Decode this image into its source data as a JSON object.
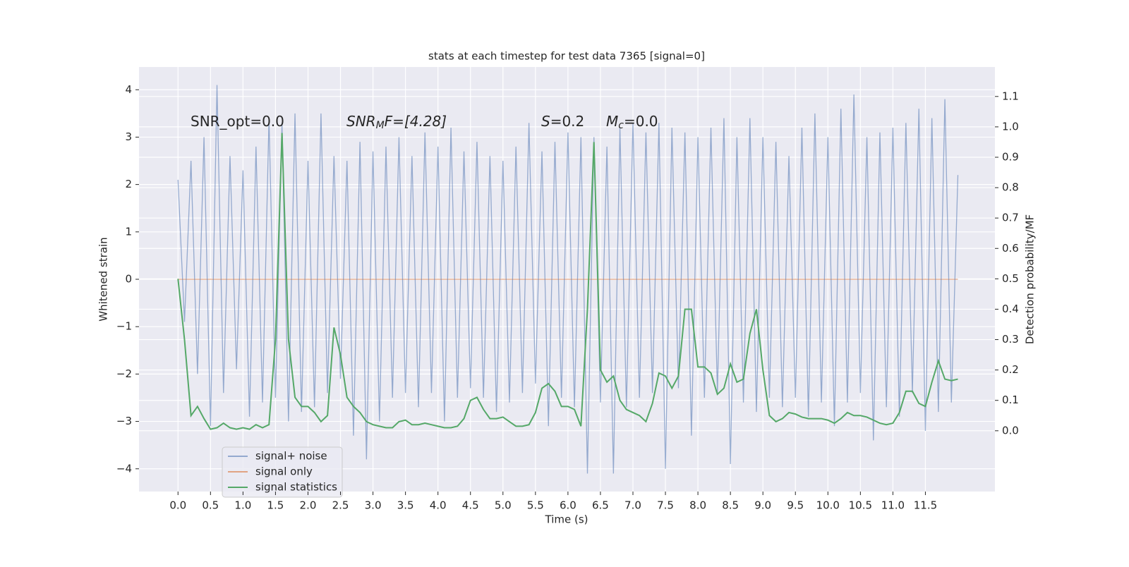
{
  "chart_data": {
    "type": "line",
    "title": "stats at each timestep for test data 7365 [signal=0]",
    "xlabel": "Time (s)",
    "ylabel": "Whitened strain",
    "y2label": "Detection probability/MF",
    "annotations": [
      {
        "text": "SNR_opt=0.0"
      },
      {
        "text": "SNR",
        "sub": "M",
        "after": "F=[4.28]"
      },
      {
        "text": "S",
        "after": "=0.2"
      },
      {
        "text": "M",
        "sub": "c",
        "after": "=0.0"
      }
    ],
    "x": [
      0,
      0.1,
      0.2,
      0.3,
      0.4,
      0.5,
      0.6,
      0.7,
      0.8,
      0.9,
      1,
      1.1,
      1.2,
      1.3,
      1.4,
      1.5,
      1.6,
      1.7,
      1.8,
      1.9,
      2,
      2.1,
      2.2,
      2.3,
      2.4,
      2.5,
      2.6,
      2.7,
      2.8,
      2.9,
      3,
      3.1,
      3.2,
      3.3,
      3.4,
      3.5,
      3.6,
      3.7,
      3.8,
      3.9,
      4,
      4.1,
      4.2,
      4.3,
      4.4,
      4.5,
      4.6,
      4.7,
      4.8,
      4.9,
      5,
      5.1,
      5.2,
      5.3,
      5.4,
      5.5,
      5.6,
      5.7,
      5.8,
      5.9,
      6,
      6.1,
      6.2,
      6.3,
      6.4,
      6.5,
      6.6,
      6.7,
      6.8,
      6.9,
      7,
      7.1,
      7.2,
      7.3,
      7.4,
      7.5,
      7.6,
      7.7,
      7.8,
      7.9,
      8,
      8.1,
      8.2,
      8.3,
      8.4,
      8.5,
      8.6,
      8.7,
      8.8,
      8.9,
      9,
      9.1,
      9.2,
      9.3,
      9.4,
      9.5,
      9.6,
      9.7,
      9.8,
      9.9,
      10,
      10.1,
      10.2,
      10.3,
      10.4,
      10.5,
      10.6,
      10.7,
      10.8,
      10.9,
      11,
      11.1,
      11.2,
      11.3,
      11.4,
      11.5,
      11.6,
      11.7,
      11.8,
      11.9,
      12
    ],
    "series": [
      {
        "name": "signal+ noise",
        "color": "#4c72b0",
        "alpha": 0.55,
        "values": [
          2.1,
          -0.9,
          2.5,
          -2.0,
          3.0,
          -3.1,
          4.1,
          -2.4,
          2.6,
          -1.9,
          2.3,
          -2.9,
          2.8,
          -2.6,
          3.4,
          -2.5,
          3.3,
          -3.0,
          3.5,
          -2.8,
          2.5,
          -2.7,
          3.5,
          -2.4,
          2.6,
          -2.1,
          2.5,
          -3.3,
          2.9,
          -3.8,
          2.7,
          -3.0,
          2.8,
          -2.5,
          3.0,
          -2.4,
          2.6,
          -2.7,
          3.1,
          -2.4,
          2.8,
          -3.0,
          3.2,
          -2.5,
          2.7,
          -2.3,
          2.9,
          -2.5,
          2.6,
          -2.8,
          2.5,
          -2.6,
          2.8,
          -2.4,
          3.3,
          -2.2,
          2.7,
          -3.1,
          2.9,
          -2.5,
          3.1,
          -2.7,
          3.0,
          -4.1,
          3.0,
          -2.6,
          2.8,
          -4.1,
          3.2,
          -2.7,
          3.3,
          -2.5,
          3.1,
          -2.4,
          3.3,
          -4.0,
          3.2,
          -2.3,
          3.1,
          -3.3,
          3.0,
          -2.5,
          3.2,
          -2.4,
          3.4,
          -3.9,
          3.0,
          -2.6,
          3.4,
          -2.8,
          3.0,
          -2.5,
          2.9,
          -2.7,
          2.6,
          -2.5,
          3.2,
          -2.9,
          3.5,
          -2.6,
          3.0,
          -3.1,
          3.6,
          -2.6,
          3.9,
          -2.4,
          3.0,
          -3.4,
          3.1,
          -2.7,
          3.2,
          -2.9,
          3.3,
          -2.4,
          3.6,
          -3.2,
          3.4,
          -2.8,
          3.8,
          -2.6,
          2.2
        ]
      },
      {
        "name": "signal only",
        "color": "#dd8452",
        "alpha": 0.7,
        "values": [
          0,
          0,
          0,
          0,
          0,
          0,
          0,
          0,
          0,
          0,
          0,
          0,
          0,
          0,
          0,
          0,
          0,
          0,
          0,
          0,
          0,
          0,
          0,
          0,
          0,
          0,
          0,
          0,
          0,
          0,
          0,
          0,
          0,
          0,
          0,
          0,
          0,
          0,
          0,
          0,
          0,
          0,
          0,
          0,
          0,
          0,
          0,
          0,
          0,
          0,
          0,
          0,
          0,
          0,
          0,
          0,
          0,
          0,
          0,
          0,
          0,
          0,
          0,
          0,
          0,
          0,
          0,
          0,
          0,
          0,
          0,
          0,
          0,
          0,
          0,
          0,
          0,
          0,
          0,
          0,
          0,
          0,
          0,
          0,
          0,
          0,
          0,
          0,
          0,
          0,
          0,
          0,
          0,
          0,
          0,
          0,
          0,
          0,
          0,
          0,
          0,
          0,
          0,
          0,
          0,
          0,
          0,
          0,
          0,
          0,
          0,
          0,
          0,
          0,
          0,
          0,
          0,
          0,
          0,
          0,
          0
        ]
      },
      {
        "name": "signal statistics",
        "color": "#55a868",
        "alpha": 1,
        "axis": "y2",
        "values": [
          0.5,
          0.3,
          0.05,
          0.08,
          0.04,
          0.005,
          0.01,
          0.025,
          0.01,
          0.005,
          0.01,
          0.005,
          0.02,
          0.01,
          0.02,
          0.3,
          0.98,
          0.3,
          0.11,
          0.08,
          0.08,
          0.06,
          0.03,
          0.05,
          0.34,
          0.25,
          0.11,
          0.08,
          0.06,
          0.03,
          0.02,
          0.015,
          0.01,
          0.01,
          0.03,
          0.035,
          0.02,
          0.02,
          0.025,
          0.02,
          0.015,
          0.01,
          0.01,
          0.015,
          0.04,
          0.1,
          0.11,
          0.07,
          0.04,
          0.04,
          0.045,
          0.03,
          0.015,
          0.015,
          0.02,
          0.06,
          0.14,
          0.155,
          0.13,
          0.08,
          0.08,
          0.07,
          0.015,
          0.4,
          0.95,
          0.2,
          0.16,
          0.18,
          0.1,
          0.07,
          0.06,
          0.05,
          0.03,
          0.09,
          0.19,
          0.18,
          0.14,
          0.18,
          0.4,
          0.4,
          0.21,
          0.21,
          0.19,
          0.12,
          0.14,
          0.22,
          0.16,
          0.17,
          0.32,
          0.4,
          0.2,
          0.05,
          0.03,
          0.04,
          0.06,
          0.055,
          0.045,
          0.04,
          0.04,
          0.04,
          0.035,
          0.025,
          0.04,
          0.06,
          0.05,
          0.05,
          0.045,
          0.035,
          0.025,
          0.02,
          0.025,
          0.06,
          0.13,
          0.13,
          0.09,
          0.08,
          0.16,
          0.23,
          0.17,
          0.165,
          0.17
        ]
      }
    ],
    "xlim": [
      -0.6,
      12.57
    ],
    "xticks": [
      {
        "value": 0,
        "label": "0.0"
      },
      {
        "value": 0.5,
        "label": "0.5"
      },
      {
        "value": 1,
        "label": "1.0"
      },
      {
        "value": 1.5,
        "label": "1.5"
      },
      {
        "value": 2,
        "label": "2.0"
      },
      {
        "value": 2.5,
        "label": "2.5"
      },
      {
        "value": 3,
        "label": "3.0"
      },
      {
        "value": 3.5,
        "label": "3.5"
      },
      {
        "value": 4,
        "label": "4.0"
      },
      {
        "value": 4.5,
        "label": "4.5"
      },
      {
        "value": 5,
        "label": "5.0"
      },
      {
        "value": 5.5,
        "label": "5.5"
      },
      {
        "value": 6,
        "label": "6.0"
      },
      {
        "value": 6.5,
        "label": "6.5"
      },
      {
        "value": 7,
        "label": "7.0"
      },
      {
        "value": 7.5,
        "label": "7.5"
      },
      {
        "value": 8,
        "label": "8.0"
      },
      {
        "value": 8.5,
        "label": "8.5"
      },
      {
        "value": 9,
        "label": "9.0"
      },
      {
        "value": 9.5,
        "label": "9.5"
      },
      {
        "value": 10,
        "label": "10.0"
      },
      {
        "value": 10.5,
        "label": "10.5"
      },
      {
        "value": 11,
        "label": "11.0"
      },
      {
        "value": 11.5,
        "label": "11.5"
      }
    ],
    "ylim": [
      -4.48,
      4.48
    ],
    "yticks": [
      {
        "value": -4,
        "label": "−4"
      },
      {
        "value": -3,
        "label": "−3"
      },
      {
        "value": -2,
        "label": "−2"
      },
      {
        "value": -1,
        "label": "−1"
      },
      0,
      1,
      2,
      3,
      4
    ],
    "y2lim": [
      -0.2,
      1.197
    ],
    "y2ticks": [
      {
        "value": 0,
        "label": "0.0"
      },
      0.1,
      0.2,
      0.3,
      0.4,
      0.5,
      0.6,
      0.7,
      0.8,
      0.9,
      {
        "value": 1,
        "label": "1.0"
      },
      1.1
    ],
    "grid": true,
    "legend": "lower left"
  }
}
